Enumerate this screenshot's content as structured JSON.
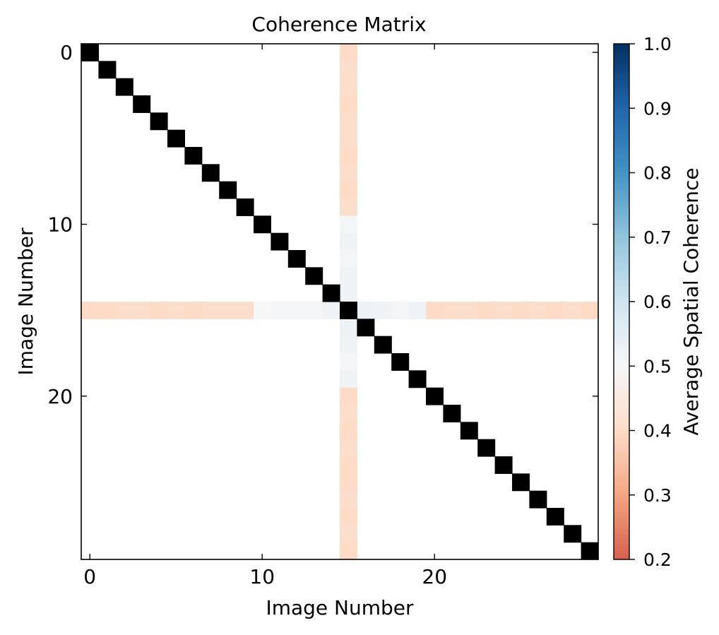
{
  "chart_data": {
    "type": "heatmap",
    "title": "Coherence Matrix",
    "xlabel": "Image Number",
    "ylabel": "Image Number",
    "n": 30,
    "xlim": [
      -0.5,
      29.5
    ],
    "ylim": [
      29.5,
      -0.5
    ],
    "x_ticks": [
      0,
      10,
      20
    ],
    "y_ticks": [
      0,
      10,
      20
    ],
    "diagonal_value": 1.0,
    "diagonal_color": "#000000",
    "masked_color": "#ffffff",
    "highlight_index": 15,
    "row_15_values": [
      0.4,
      0.4,
      0.41,
      0.41,
      0.4,
      0.41,
      0.4,
      0.41,
      0.41,
      0.41,
      0.5,
      0.51,
      0.51,
      0.51,
      0.52,
      1.0,
      0.53,
      0.52,
      0.51,
      0.52,
      0.4,
      0.41,
      0.41,
      0.4,
      0.41,
      0.4,
      0.41,
      0.4,
      0.41,
      0.4
    ],
    "col_15_values": [
      0.4,
      0.41,
      0.41,
      0.4,
      0.41,
      0.41,
      0.4,
      0.41,
      0.4,
      0.41,
      0.51,
      0.52,
      0.51,
      0.52,
      0.52,
      1.0,
      0.53,
      0.52,
      0.51,
      0.52,
      0.4,
      0.41,
      0.4,
      0.41,
      0.4,
      0.4,
      0.41,
      0.4,
      0.41,
      0.4
    ],
    "colorbar": {
      "label": "Average Spatial Coherence",
      "range": [
        0.2,
        1.0
      ],
      "ticks": [
        "0.2",
        "0.3",
        "0.4",
        "0.5",
        "0.6",
        "0.7",
        "0.8",
        "0.9",
        "1.0"
      ],
      "colormap": "RdBu",
      "colormap_range": [
        0.0,
        1.0
      ],
      "masked_interval": [
        0.7,
        0.7
      ]
    }
  }
}
